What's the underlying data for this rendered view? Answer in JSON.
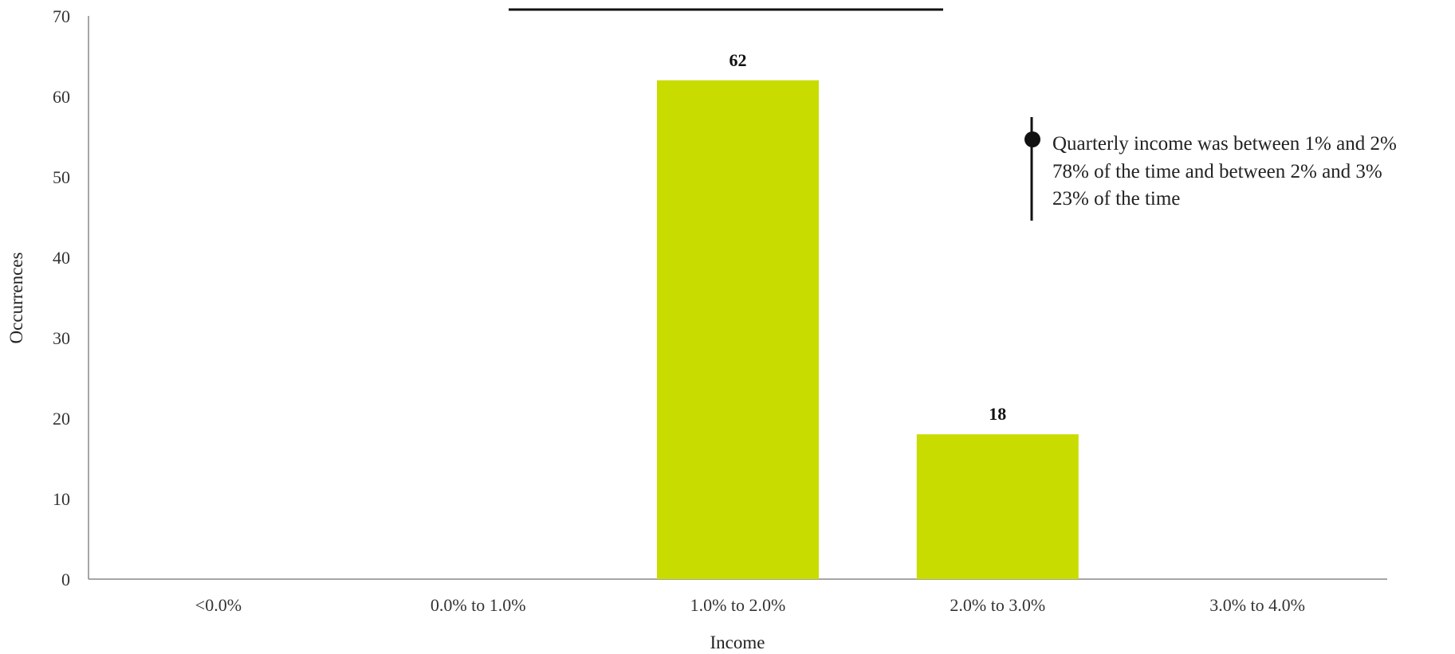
{
  "chart_data": {
    "type": "bar",
    "title": "",
    "xlabel": "Income",
    "ylabel": "Occurrences",
    "categories": [
      "<0.0%",
      "0.0% to 1.0%",
      "1.0% to 2.0%",
      "2.0% to 3.0%",
      "3.0% to 4.0%"
    ],
    "values": [
      0,
      0,
      62,
      18,
      0
    ],
    "data_labels": [
      "",
      "",
      "62",
      "18",
      ""
    ],
    "ylim": [
      0,
      70
    ],
    "yticks": [
      0,
      10,
      20,
      30,
      40,
      50,
      60,
      70
    ],
    "grid": false,
    "legend": "none",
    "bar_color": "#c8dc00",
    "annotation": {
      "lines": [
        "Quarterly income was between 1% and 2%",
        "78% of the time and between 2% and 3%",
        "23% of the time"
      ]
    }
  }
}
